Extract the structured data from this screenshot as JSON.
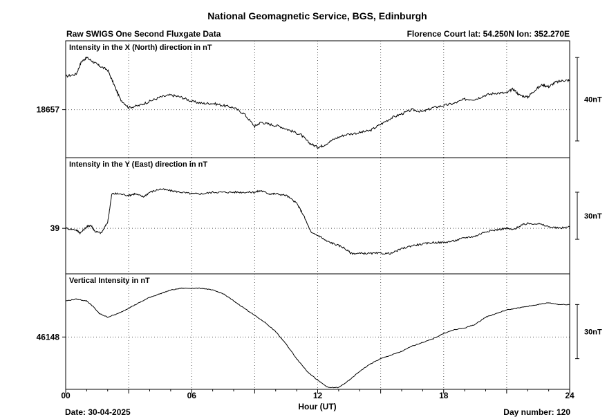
{
  "title": "National Geomagnetic Service, BGS, Edinburgh",
  "subtitle_left": "Raw SWIGS One Second Fluxgate Data",
  "subtitle_right": "Florence Court  lat: 54.250N lon: 352.270E",
  "xlabel": "Hour (UT)",
  "date_text": "Date: 30-04-2025",
  "day_text": "Day number:  120",
  "chart_data": {
    "type": "line",
    "x_range": [
      0,
      24
    ],
    "x_ticks": [
      0,
      6,
      12,
      18,
      24
    ],
    "x_tick_labels": [
      "00",
      "06",
      "12",
      "18",
      "24"
    ],
    "grid": true,
    "panels": [
      {
        "title": "Intensity in the X (North) direction in nT",
        "ref_value_label": "18657",
        "ref_value": 18657,
        "y_range": [
          18634,
          18690
        ],
        "scale_bar_label": "40nT",
        "scale_bar_nT": 40,
        "points": [
          [
            0,
            18673
          ],
          [
            0.5,
            18674
          ],
          [
            0.75,
            18680
          ],
          [
            1,
            18682
          ],
          [
            1.3,
            18680
          ],
          [
            1.6,
            18678
          ],
          [
            2,
            18676
          ],
          [
            2.3,
            18669
          ],
          [
            2.6,
            18662
          ],
          [
            3,
            18658
          ],
          [
            3.5,
            18659
          ],
          [
            4,
            18661
          ],
          [
            4.5,
            18663
          ],
          [
            5,
            18664
          ],
          [
            5.5,
            18663
          ],
          [
            6,
            18661
          ],
          [
            6.5,
            18660
          ],
          [
            7,
            18660
          ],
          [
            7.5,
            18659
          ],
          [
            8,
            18658
          ],
          [
            8.5,
            18655
          ],
          [
            9,
            18649
          ],
          [
            9.3,
            18651
          ],
          [
            9.7,
            18650
          ],
          [
            10.2,
            18649
          ],
          [
            10.7,
            18647
          ],
          [
            11.2,
            18645
          ],
          [
            11.6,
            18641
          ],
          [
            12,
            18639
          ],
          [
            12.3,
            18640
          ],
          [
            12.8,
            18643
          ],
          [
            13.3,
            18645
          ],
          [
            14,
            18646
          ],
          [
            14.5,
            18647
          ],
          [
            15,
            18650
          ],
          [
            15.5,
            18653
          ],
          [
            16,
            18655
          ],
          [
            16.5,
            18657
          ],
          [
            17,
            18656
          ],
          [
            17.5,
            18658
          ],
          [
            18,
            18659
          ],
          [
            18.5,
            18660
          ],
          [
            19,
            18662
          ],
          [
            19.5,
            18662
          ],
          [
            20,
            18664
          ],
          [
            20.5,
            18665
          ],
          [
            21,
            18665
          ],
          [
            21.3,
            18667
          ],
          [
            21.6,
            18664
          ],
          [
            22,
            18663
          ],
          [
            22.3,
            18666
          ],
          [
            22.7,
            18669
          ],
          [
            23,
            18668
          ],
          [
            23.3,
            18670
          ],
          [
            23.7,
            18671
          ],
          [
            24,
            18671
          ]
        ]
      },
      {
        "title": "Intensity in the Y (East) direction in nT",
        "ref_value_label": "39",
        "ref_value": 39,
        "y_range": [
          10,
          84
        ],
        "scale_bar_label": "30nT",
        "scale_bar_nT": 30,
        "points": [
          [
            0,
            39
          ],
          [
            0.5,
            38
          ],
          [
            0.7,
            36
          ],
          [
            1,
            40
          ],
          [
            1.2,
            41
          ],
          [
            1.4,
            37
          ],
          [
            1.7,
            36
          ],
          [
            2,
            43
          ],
          [
            2.2,
            61
          ],
          [
            2.5,
            61
          ],
          [
            3,
            60
          ],
          [
            3.3,
            61
          ],
          [
            3.7,
            59
          ],
          [
            4,
            62
          ],
          [
            4.5,
            64
          ],
          [
            5,
            63
          ],
          [
            5.5,
            62
          ],
          [
            6,
            61
          ],
          [
            6.5,
            61
          ],
          [
            7,
            62
          ],
          [
            7.5,
            62
          ],
          [
            8,
            62
          ],
          [
            8.5,
            62
          ],
          [
            9,
            62
          ],
          [
            9.3,
            63
          ],
          [
            9.7,
            61
          ],
          [
            10,
            61
          ],
          [
            10.5,
            60
          ],
          [
            11,
            55
          ],
          [
            11.3,
            48
          ],
          [
            11.7,
            36
          ],
          [
            12.1,
            34
          ],
          [
            12.4,
            31
          ],
          [
            12.8,
            29
          ],
          [
            13.2,
            27
          ],
          [
            13.6,
            23
          ],
          [
            14,
            23
          ],
          [
            14.5,
            23
          ],
          [
            15,
            23
          ],
          [
            15.5,
            23
          ],
          [
            16,
            26
          ],
          [
            16.5,
            28
          ],
          [
            17,
            29
          ],
          [
            17.5,
            30
          ],
          [
            18,
            30
          ],
          [
            18.5,
            31
          ],
          [
            19,
            33
          ],
          [
            19.5,
            34
          ],
          [
            20,
            37
          ],
          [
            20.5,
            38
          ],
          [
            21,
            39
          ],
          [
            21.3,
            38
          ],
          [
            21.7,
            41
          ],
          [
            22,
            42
          ],
          [
            22.5,
            42
          ],
          [
            23,
            40
          ],
          [
            23.5,
            39
          ],
          [
            24,
            40
          ]
        ]
      },
      {
        "title": "Vertical Intensity in nT",
        "ref_value_label": "46148",
        "ref_value": 46148,
        "y_range": [
          46119,
          46183
        ],
        "scale_bar_label": "30nT",
        "scale_bar_nT": 30,
        "points": [
          [
            0,
            46168
          ],
          [
            0.5,
            46169
          ],
          [
            1,
            46168
          ],
          [
            1.3,
            46165
          ],
          [
            1.6,
            46161
          ],
          [
            2,
            46159
          ],
          [
            2.5,
            46161
          ],
          [
            3,
            46164
          ],
          [
            3.5,
            46167
          ],
          [
            4,
            46170
          ],
          [
            4.5,
            46172
          ],
          [
            5,
            46174
          ],
          [
            5.5,
            46175
          ],
          [
            6,
            46175
          ],
          [
            6.5,
            46175
          ],
          [
            7,
            46174
          ],
          [
            7.5,
            46172
          ],
          [
            8,
            46168
          ],
          [
            8.5,
            46164
          ],
          [
            9,
            46160
          ],
          [
            9.5,
            46156
          ],
          [
            10,
            46151
          ],
          [
            10.5,
            46144
          ],
          [
            11,
            46136
          ],
          [
            11.5,
            46129
          ],
          [
            12,
            46124
          ],
          [
            12.5,
            46120
          ],
          [
            13,
            46120
          ],
          [
            13.5,
            46124
          ],
          [
            14,
            46129
          ],
          [
            14.5,
            46133
          ],
          [
            15,
            46136
          ],
          [
            15.5,
            46138
          ],
          [
            16,
            46140
          ],
          [
            16.5,
            46143
          ],
          [
            17,
            46145
          ],
          [
            17.5,
            46147
          ],
          [
            18,
            46150
          ],
          [
            18.5,
            46152
          ],
          [
            19,
            46153
          ],
          [
            19.5,
            46155
          ],
          [
            20,
            46159
          ],
          [
            20.5,
            46161
          ],
          [
            21,
            46163
          ],
          [
            21.5,
            46164
          ],
          [
            22,
            46165
          ],
          [
            22.5,
            46166
          ],
          [
            23,
            46167
          ],
          [
            23.5,
            46166
          ],
          [
            24,
            46166
          ]
        ]
      }
    ]
  }
}
